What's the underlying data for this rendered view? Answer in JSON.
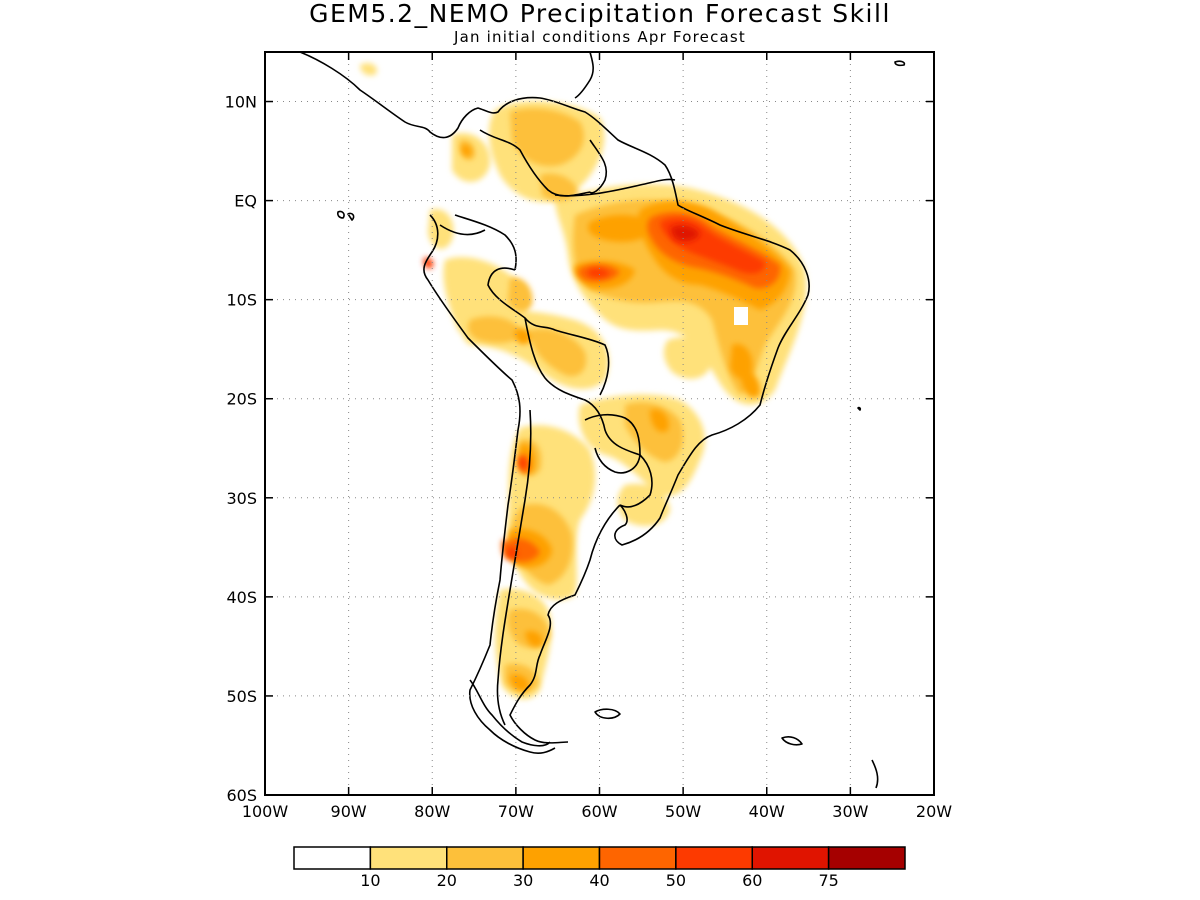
{
  "title": "GEM5.2_NEMO Precipitation Forecast Skill",
  "subtitle": "Jan initial conditions  Apr Forecast",
  "map": {
    "lon_range": [
      -100,
      -20
    ],
    "lat_range": [
      -60,
      15
    ],
    "lon_ticks": [
      {
        "value": -100,
        "label": "100W"
      },
      {
        "value": -90,
        "label": "90W"
      },
      {
        "value": -80,
        "label": "80W"
      },
      {
        "value": -70,
        "label": "70W"
      },
      {
        "value": -60,
        "label": "60W"
      },
      {
        "value": -50,
        "label": "50W"
      },
      {
        "value": -40,
        "label": "40W"
      },
      {
        "value": -30,
        "label": "30W"
      },
      {
        "value": -20,
        "label": "20W"
      }
    ],
    "lat_ticks": [
      {
        "value": 10,
        "label": "10N"
      },
      {
        "value": 0,
        "label": "EQ"
      },
      {
        "value": -10,
        "label": "10S"
      },
      {
        "value": -20,
        "label": "20S"
      },
      {
        "value": -30,
        "label": "30S"
      },
      {
        "value": -40,
        "label": "40S"
      },
      {
        "value": -50,
        "label": "50S"
      },
      {
        "value": -60,
        "label": "60S"
      }
    ],
    "grid": true
  },
  "colorbar": {
    "colors": [
      "#ffffff",
      "#ffe17a",
      "#fdc03a",
      "#fea100",
      "#fe6500",
      "#fd3a00",
      "#e01400",
      "#a50000"
    ],
    "labels": [
      "10",
      "20",
      "30",
      "40",
      "50",
      "60",
      "75"
    ]
  }
}
